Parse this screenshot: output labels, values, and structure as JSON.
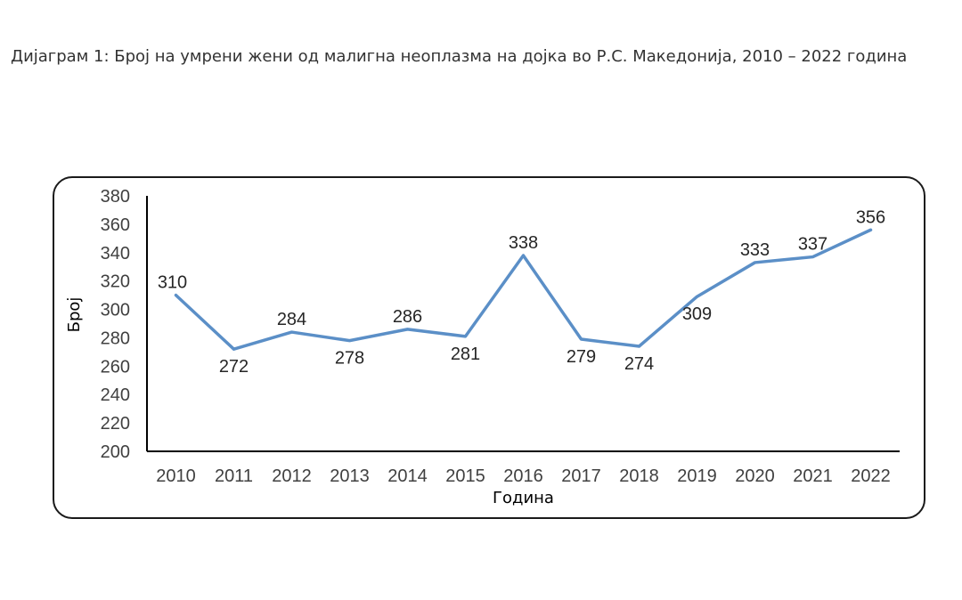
{
  "heading": "Дијаграм 1: Број на умрени жени од малигна неоплазма на дојка во Р.С. Македонија, 2010 – 2022 година",
  "chart_data": {
    "type": "line",
    "title": "",
    "xlabel": "Година",
    "ylabel": "Број",
    "ylim": [
      200,
      380
    ],
    "ytick_step": 20,
    "categories": [
      "2010",
      "2011",
      "2012",
      "2013",
      "2014",
      "2015",
      "2016",
      "2017",
      "2018",
      "2019",
      "2020",
      "2021",
      "2022"
    ],
    "series": [
      {
        "values": [
          310,
          272,
          284,
          278,
          286,
          281,
          338,
          279,
          274,
          309,
          333,
          337,
          356
        ],
        "color": "#5b8fc7",
        "label_positions": [
          "above",
          "below",
          "above",
          "below",
          "above",
          "below",
          "above",
          "below",
          "below",
          "below",
          "above",
          "above",
          "above"
        ]
      }
    ],
    "grid": false,
    "legend": "none"
  }
}
